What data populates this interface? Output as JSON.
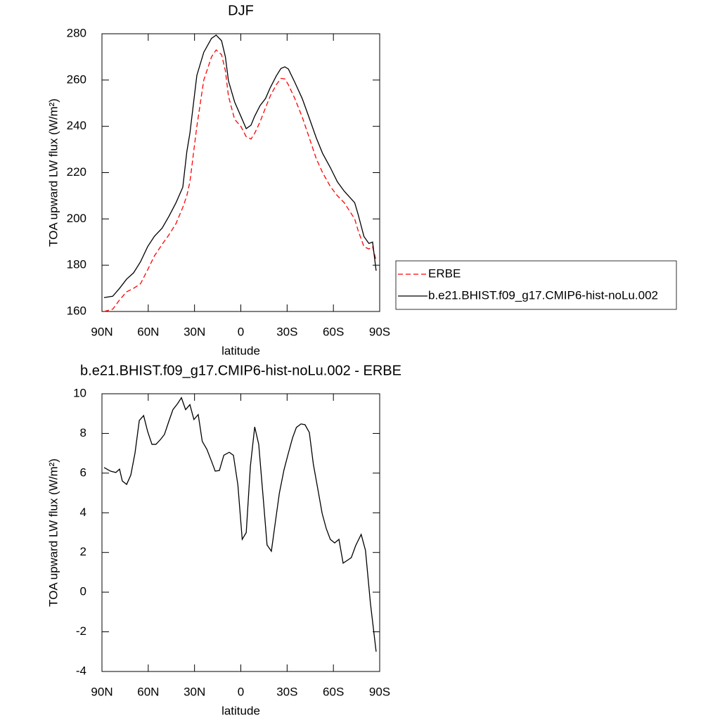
{
  "chart_data": [
    {
      "type": "line",
      "title": "DJF",
      "xlabel": "latitude",
      "ylabel": "TOA upward LW flux (W/m²)",
      "x": [
        88.6,
        83,
        78.6,
        74,
        69.5,
        65,
        60.4,
        56,
        51,
        46.7,
        42,
        37.6,
        35,
        33,
        28.5,
        24,
        19,
        16,
        12.5,
        10,
        8,
        4,
        0,
        -3.5,
        -6.6,
        -9,
        -12.5,
        -16,
        -19,
        -23,
        -26,
        -28.5,
        -30.8,
        -35,
        -39.8,
        -44.4,
        -48.9,
        -53,
        -58,
        -62.6,
        -67,
        -73.8,
        -76,
        -79.8,
        -83,
        -85.4,
        -87.7
      ],
      "series": [
        {
          "name": "ERBE",
          "color": "#ff0000",
          "linestyle": "dashed",
          "values": [
            160,
            161,
            165,
            168.5,
            170,
            172,
            178,
            184,
            189,
            193,
            198,
            205,
            210,
            216,
            240,
            260,
            270,
            273,
            271,
            264,
            253,
            243,
            240,
            235.5,
            234.5,
            237,
            242,
            248,
            253,
            258,
            260.7,
            260.5,
            258,
            252,
            244,
            235,
            226,
            220,
            214,
            210,
            207,
            200,
            195,
            188,
            187,
            188,
            182
          ]
        },
        {
          "name": "b.e21.BHIST.f09_g17.CMIP6-hist-noLu.002",
          "color": "#000000",
          "linestyle": "solid",
          "values": [
            166,
            166.6,
            170,
            174,
            176.7,
            181.5,
            188,
            192.5,
            196,
            201,
            207,
            213.7,
            229,
            237,
            262,
            272,
            278,
            279.4,
            277,
            270,
            259.6,
            250.5,
            244.4,
            239,
            240.5,
            244.4,
            249,
            252,
            256.6,
            261.8,
            265,
            265.7,
            264.8,
            259,
            252,
            243.5,
            235,
            228.3,
            222.2,
            216,
            212,
            207,
            202,
            192.4,
            189.4,
            190,
            177.6
          ]
        }
      ],
      "xlim": [
        90,
        -90
      ],
      "xticks": [
        {
          "value": 90,
          "label": "90N"
        },
        {
          "value": 60,
          "label": "60N"
        },
        {
          "value": 30,
          "label": "30N"
        },
        0,
        {
          "value": -30,
          "label": "30S"
        },
        {
          "value": -60,
          "label": "60S"
        },
        {
          "value": -90,
          "label": "90S"
        }
      ],
      "ylim": [
        160,
        280
      ],
      "yticks": [
        160,
        180,
        200,
        220,
        240,
        260,
        280
      ],
      "legend": "right"
    },
    {
      "type": "line",
      "title": "b.e21.BHIST.f09_g17.CMIP6-hist-noLu.002 - ERBE",
      "xlabel": "latitude",
      "ylabel": "TOA upward LW flux (W/m²)",
      "x": [
        88.6,
        84.5,
        81,
        78.6,
        76.8,
        74,
        71.3,
        68.6,
        65.8,
        63,
        60.4,
        57.6,
        55,
        52,
        49.5,
        46.7,
        44,
        41,
        38.5,
        35.8,
        33,
        30.4,
        27.6,
        25,
        22,
        19,
        16.6,
        13.9,
        11,
        7.5,
        4.8,
        1.9,
        -0.9,
        -3.5,
        -6.2,
        -9,
        -11.6,
        -14.4,
        -17,
        -19.8,
        -22.5,
        -25,
        -28,
        -30.8,
        -33.5,
        -36,
        -39,
        -41.6,
        -44.4,
        -47,
        -49.9,
        -52.7,
        -55.4,
        -58,
        -60.8,
        -63.6,
        -66.3,
        -69,
        -71.6,
        -74.4,
        -78,
        -80.8,
        -84,
        -87.7
      ],
      "values": [
        6.28,
        6.1,
        6.03,
        6.2,
        5.6,
        5.43,
        5.9,
        7.0,
        8.65,
        8.9,
        8.1,
        7.45,
        7.45,
        7.7,
        7.95,
        8.6,
        9.2,
        9.5,
        9.8,
        9.2,
        9.45,
        8.7,
        8.95,
        7.6,
        7.2,
        6.6,
        6.1,
        6.13,
        6.9,
        7.05,
        6.9,
        5.4,
        2.66,
        3.0,
        6.35,
        8.33,
        7.45,
        4.85,
        2.38,
        2.06,
        3.6,
        5.0,
        6.17,
        7.0,
        7.77,
        8.3,
        8.48,
        8.44,
        8.05,
        6.45,
        5.2,
        3.97,
        3.2,
        2.66,
        2.48,
        2.66,
        1.46,
        1.6,
        1.74,
        2.34,
        2.91,
        2.1,
        -0.56,
        -3.0
      ],
      "color": "#000000",
      "xlim": [
        90,
        -90
      ],
      "xticks": [
        {
          "value": 90,
          "label": "90N"
        },
        {
          "value": 60,
          "label": "60N"
        },
        {
          "value": 30,
          "label": "30N"
        },
        0,
        {
          "value": -30,
          "label": "30S"
        },
        {
          "value": -60,
          "label": "60S"
        },
        {
          "value": -90,
          "label": "90S"
        }
      ],
      "ylim": [
        -4,
        10
      ],
      "yticks": [
        -4,
        -2,
        0,
        2,
        4,
        6,
        8,
        10
      ]
    }
  ]
}
